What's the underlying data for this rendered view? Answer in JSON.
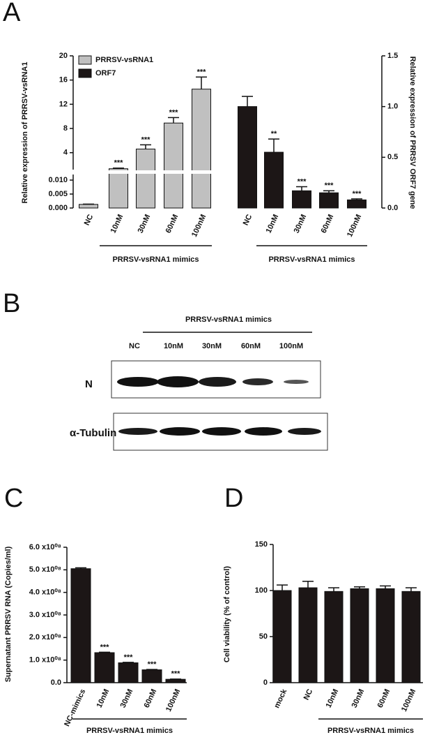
{
  "chart_data": [
    {
      "type": "bar",
      "panel": "A",
      "ylabel": "Relative expression of PRRSV-vsRNA1",
      "y2label": "Relative expression of PRRSV ORF7 gene",
      "categories": [
        "NC",
        "10nM",
        "30nM",
        "60nM",
        "100nM"
      ],
      "group_label": "PRRSV-vsRNA1 mimics",
      "series": [
        {
          "name": "PRRSV-vsRNA1",
          "color": "#c0c0c0",
          "values": [
            0.0013,
            1.35,
            4.6,
            8.9,
            14.5
          ],
          "errors": [
            0.0001,
            0.1,
            0.7,
            0.9,
            2.0
          ],
          "annotations": [
            null,
            "***",
            "***",
            "***",
            "***"
          ]
        },
        {
          "name": "ORF7",
          "color": "#1c1616",
          "axis": "y2",
          "values": [
            1.0,
            0.55,
            0.17,
            0.15,
            0.08
          ],
          "errors": [
            0.1,
            0.13,
            0.04,
            0.02,
            0.01
          ],
          "annotations": [
            null,
            "**",
            "***",
            "***",
            "***"
          ]
        }
      ],
      "ylim": [
        0,
        20
      ],
      "axis_break": [
        0.012,
        1.2
      ],
      "yticks": [
        {
          "value": 0,
          "label": "0.000"
        },
        {
          "value": 0.005,
          "label": "0.005"
        },
        {
          "value": 0.01,
          "label": "0.010"
        },
        4,
        8,
        12,
        16,
        20
      ],
      "y2lim": [
        0,
        1.5
      ],
      "y2ticks": [
        {
          "value": 0,
          "label": "0.0"
        },
        0.5,
        {
          "value": 1,
          "label": "1.0"
        },
        1.5
      ],
      "legend": "upper left"
    },
    {
      "type": "bar",
      "panel": "C",
      "ylabel": "Supernatant PRRSV RNA (Copies/ml)",
      "categories": [
        "NC-mimics",
        "10nM",
        "30nM",
        "60nM",
        "100nM"
      ],
      "group_label": "PRRSV-vsRNA1 mimics",
      "values": [
        505000000,
        133000000,
        88000000,
        57000000,
        15000000
      ],
      "errors": [
        4000000,
        2000000,
        2000000,
        1500000,
        1000000
      ],
      "annotations": [
        null,
        "***",
        "***",
        "***",
        "***"
      ],
      "color": "#1c1616",
      "ylim": [
        0,
        600000000
      ],
      "yticks": [
        {
          "value": 0,
          "label": "0.0"
        },
        {
          "value": 100000000,
          "label": "1.0 x10⁰⁸"
        },
        {
          "value": 200000000,
          "label": "2.0 x10⁰⁸"
        },
        {
          "value": 300000000,
          "label": "3.0 x10⁰⁸"
        },
        {
          "value": 400000000,
          "label": "4.0 x10⁰⁸"
        },
        {
          "value": 500000000,
          "label": "5.0 x10⁰⁸"
        },
        {
          "value": 600000000,
          "label": "6.0 x10⁰⁸"
        }
      ]
    },
    {
      "type": "bar",
      "panel": "D",
      "ylabel": "Cell viability   (% of control)",
      "categories": [
        "mock",
        "NC",
        "10nM",
        "30nM",
        "60nM",
        "100nM"
      ],
      "group_label": "PRRSV-vsRNA1 mimics",
      "values": [
        100,
        103,
        99,
        102,
        102,
        99
      ],
      "errors": [
        6,
        7,
        4,
        2,
        3,
        4
      ],
      "color": "#1c1616",
      "ylim": [
        0,
        150
      ],
      "yticks": [
        0,
        50,
        100,
        150
      ]
    }
  ],
  "blot": {
    "panel": "B",
    "group_label": "PRRSV-vsRNA1 mimics",
    "lanes": [
      "NC",
      "10nM",
      "30nM",
      "60nM",
      "100nM"
    ],
    "rows": [
      "N",
      "α-Tubulin"
    ]
  }
}
